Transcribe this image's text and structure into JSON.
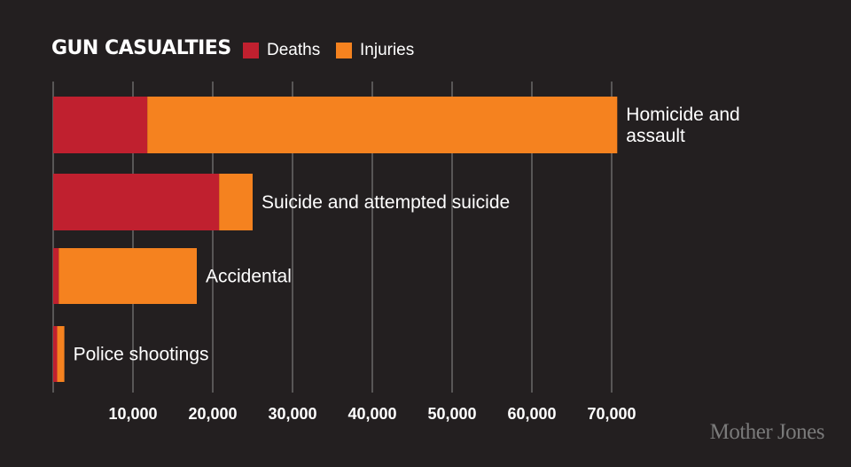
{
  "title": "GUN CASUALTIES",
  "legend": [
    {
      "label": "Deaths",
      "color": "#c0202f"
    },
    {
      "label": "Injuries",
      "color": "#f5821f"
    }
  ],
  "credit": "Mother Jones",
  "chart_data": {
    "type": "bar",
    "orientation": "horizontal",
    "stacked": true,
    "categories": [
      [
        "Homicide and",
        "assault"
      ],
      [
        "Suicide and attempted suicide"
      ],
      [
        "Accidental"
      ],
      [
        "Police shootings"
      ]
    ],
    "series": [
      {
        "name": "Deaths",
        "color": "#c0202f",
        "values": [
          11800,
          20800,
          700,
          500
        ]
      },
      {
        "name": "Injuries",
        "color": "#f5821f",
        "values": [
          58900,
          4200,
          17300,
          900
        ]
      }
    ],
    "xlim": [
      0,
      70000
    ],
    "xticks": [
      "10,000",
      "20,000",
      "30,000",
      "40,000",
      "50,000",
      "60,000",
      "70,000"
    ],
    "xtick_values": [
      10000,
      20000,
      30000,
      40000,
      50000,
      60000,
      70000
    ],
    "grid": true,
    "background": "#231f20",
    "grid_color": "#8c8c8c"
  }
}
